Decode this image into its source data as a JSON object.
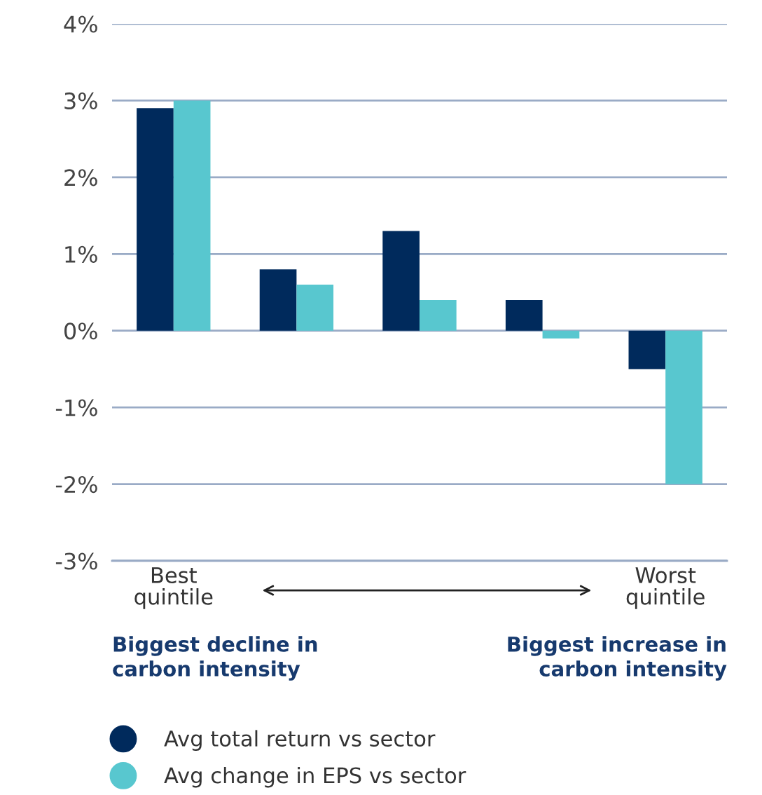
{
  "chart_data": {
    "type": "bar",
    "categories": [
      "Best\nquintile",
      null,
      null,
      null,
      "Worst\nquintile"
    ],
    "series": [
      {
        "name": "Avg total return vs sector",
        "color": "#002a5c",
        "values": [
          2.9,
          0.8,
          1.3,
          0.4,
          -0.5
        ]
      },
      {
        "name": "Avg change in EPS vs sector",
        "color": "#58c7cf",
        "values": [
          3.0,
          0.6,
          0.4,
          -0.1,
          -2.0
        ]
      }
    ],
    "ylim": [
      -3,
      4
    ],
    "yticks": [
      {
        "value": -3,
        "label": "-3%"
      },
      {
        "value": -2,
        "label": "-2%"
      },
      {
        "value": -1,
        "label": "-1%"
      },
      {
        "value": 0,
        "label": "0%"
      },
      {
        "value": 1,
        "label": "1%"
      },
      {
        "value": 2,
        "label": "2%"
      },
      {
        "value": 3,
        "label": "3%"
      },
      {
        "value": 4,
        "label": "4%"
      }
    ],
    "grid": "y",
    "legend": "bottom",
    "annotations": [
      "Biggest decline in\ncarbon intensity",
      "Biggest increase in\ncarbon intensity"
    ]
  }
}
